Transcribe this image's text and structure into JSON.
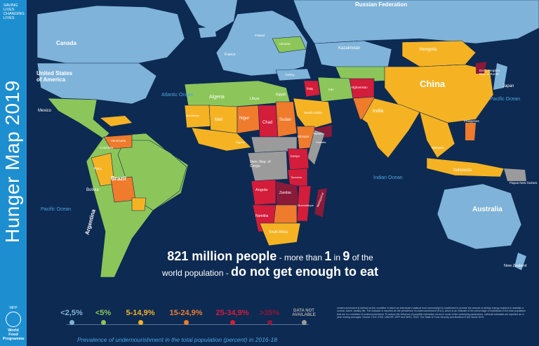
{
  "header": {
    "slogan": [
      "SAVING",
      "LIVES",
      "CHANGING",
      "LIVES"
    ],
    "title": "Hunger Map 2019"
  },
  "wfp": {
    "tag": "WFP",
    "name": [
      "World Food",
      "Programme"
    ]
  },
  "headline": {
    "line1_strong": "821 million people",
    "line1_mid": " - more than ",
    "line1_num1": "1",
    "line1_in": " in ",
    "line1_num2": "9",
    "line1_of": " of the",
    "line2_pre": "world population - ",
    "line2_strong": "do not get enough to eat"
  },
  "legend": [
    {
      "label": "<2,5%",
      "color": "#7fb3d9"
    },
    {
      "label": "<5%",
      "color": "#8cc65a"
    },
    {
      "label": "5-14,9%",
      "color": "#f5b324"
    },
    {
      "label": "15-24,9%",
      "color": "#ef7b2c"
    },
    {
      "label": "25-34,9%",
      "color": "#d41c3b"
    },
    {
      "label": ">35%",
      "color": "#8a1a3a"
    },
    {
      "label": "DATA NOT AVAILABLE",
      "color": "#9b9b9b"
    }
  ],
  "caption": "Prevalence of undernourishment in the total population (percent) in 2016-18",
  "oceans": [
    "Atlantic Ocean",
    "Pacific Ocean",
    "Indian Ocean",
    "Pacific Ocean"
  ],
  "countries": {
    "russia": "Russian Federation",
    "canada": "Canada",
    "usa": "United States of America",
    "mexico": "Mexico",
    "brazil": "Brazil",
    "bolivia": "Bolivia",
    "argentina": "Argentina",
    "kazakhstan": "Kazakhstan",
    "mongolia": "Mongolia",
    "china": "China",
    "india": "India",
    "japan": "Japan",
    "indonesia": "Indonesia",
    "australia": "Australia",
    "nz": "New Zealand",
    "algeria": "Algeria",
    "libya": "Libya",
    "egypt": "Egypt",
    "niger": "Niger",
    "chad": "Chad",
    "sudan": "Sudan",
    "ethiopia": "Ethiopia",
    "drc": "Dem. Rep. of Congo",
    "angola": "Angola",
    "zambia": "Zambia",
    "namibia": "Namibia",
    "sa": "South Africa",
    "madagascar": "Madagascar",
    "iraq": "Iraq",
    "iran": "Iran",
    "afghanistan": "Afghanistan",
    "saudi": "Saudi Arabia",
    "turkey": "Turkey",
    "ukraine": "Ukraine",
    "poland": "Poland",
    "france": "France",
    "mali": "Mali",
    "kenya": "Kenya",
    "png": "Papua New Guinea",
    "philippines": "Philippines",
    "dprk": "Dem. People's Rep. of Korea",
    "venezuela": "Venezuela",
    "peru": "Peru",
    "colombia": "Colombia",
    "malaysia": "Malaysia",
    "yemen": "Yemen",
    "somalia": "Somalia",
    "mauritania": "Mauritania",
    "nigeria": "Nigeria",
    "tanzania": "Tanzania",
    "mozambique": "Mozambique"
  },
  "footnote": "Undernourishment is defined as the condition in which an individual's habitual food consumption is insufficient to provide the amount of dietary energy required to maintain a normal, active, healthy life. The indicator is reported as the prevalence of undernourishment (PoU), which is an estimate of the percentage of individuals in the total population that are in a condition of undernourishment. To reduce the influence of possible estimation errors in some of the underlying parameters, national estimates are reported as 3-year moving averages. Source: FAO, IFAD, UNICEF, WFP and WHO. 2019. The State of Food Security and Nutrition in the World 2019."
}
